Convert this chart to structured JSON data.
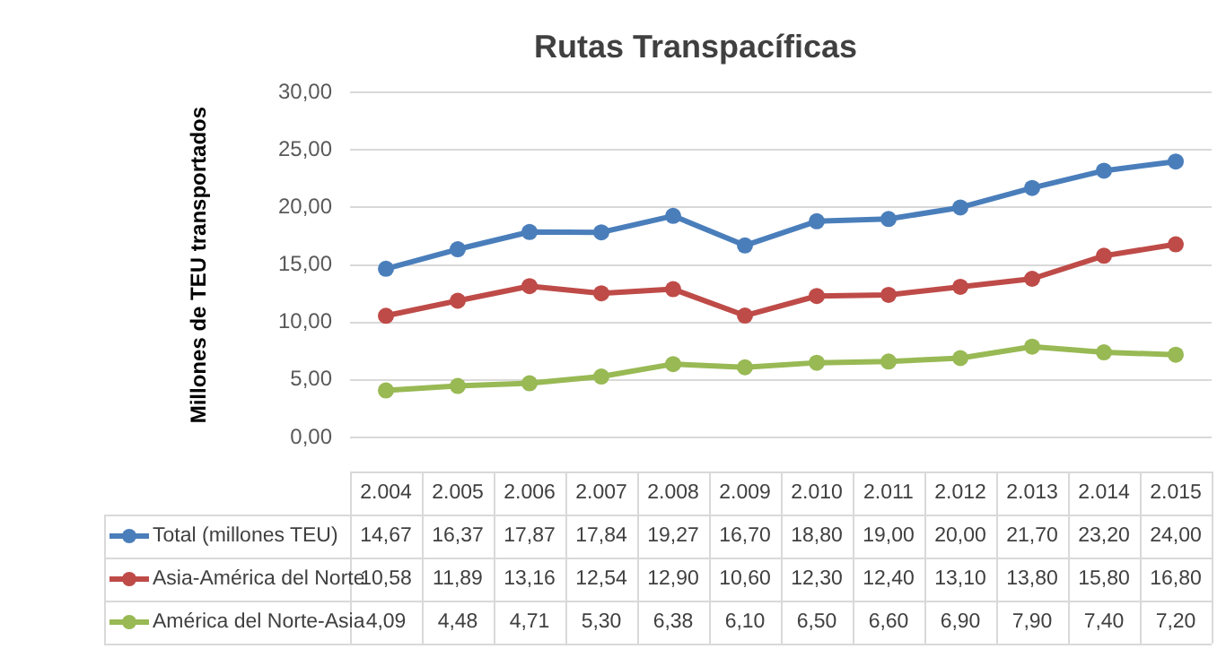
{
  "chart_data": {
    "type": "line",
    "title": "Rutas Transpacíficas",
    "ylabel": "Millones de TEU transportados",
    "categories": [
      "2.004",
      "2.005",
      "2.006",
      "2.007",
      "2.008",
      "2.009",
      "2.010",
      "2.011",
      "2.012",
      "2.013",
      "2.014",
      "2.015"
    ],
    "series": [
      {
        "name": "Total (millones TEU)",
        "color": "#4a7ebb",
        "values": [
          14.67,
          16.37,
          17.87,
          17.84,
          19.27,
          16.7,
          18.8,
          19.0,
          20.0,
          21.7,
          23.2,
          24.0
        ]
      },
      {
        "name": "Asia-América del Norte",
        "color": "#be4b48",
        "values": [
          10.58,
          11.89,
          13.16,
          12.54,
          12.9,
          10.6,
          12.3,
          12.4,
          13.1,
          13.8,
          15.8,
          16.8
        ]
      },
      {
        "name": "América del Norte-Asia",
        "color": "#98b954",
        "values": [
          4.09,
          4.48,
          4.71,
          5.3,
          6.38,
          6.1,
          6.5,
          6.6,
          6.9,
          7.9,
          7.4,
          7.2
        ]
      }
    ],
    "ylim": [
      0,
      30
    ],
    "yticks": [
      {
        "value": 0,
        "label": "0,00"
      },
      {
        "value": 5,
        "label": "5,00"
      },
      {
        "value": 10,
        "label": "10,00"
      },
      {
        "value": 15,
        "label": "15,00"
      },
      {
        "value": 20,
        "label": "20,00"
      },
      {
        "value": 25,
        "label": "25,00"
      },
      {
        "value": 30,
        "label": "30,00"
      }
    ],
    "value_labels": [
      [
        "14,67",
        "16,37",
        "17,87",
        "17,84",
        "19,27",
        "16,70",
        "18,80",
        "19,00",
        "20,00",
        "21,70",
        "23,20",
        "24,00"
      ],
      [
        "10,58",
        "11,89",
        "13,16",
        "12,54",
        "12,90",
        "10,60",
        "12,30",
        "12,40",
        "13,10",
        "13,80",
        "15,80",
        "16,80"
      ],
      [
        "4,09",
        "4,48",
        "4,71",
        "5,30",
        "6,38",
        "6,10",
        "6,50",
        "6,60",
        "6,90",
        "7,90",
        "7,40",
        "7,20"
      ]
    ],
    "grid": "y",
    "legend": "bottom",
    "marker": "circle",
    "line_style": "solid"
  }
}
